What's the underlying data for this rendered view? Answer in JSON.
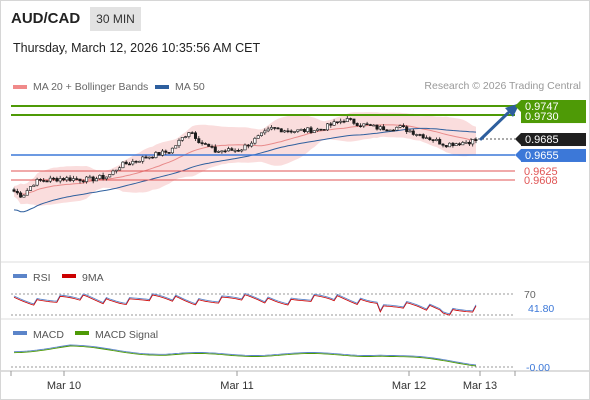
{
  "header": {
    "symbol": "AUD/CAD",
    "timeframe": "30 MIN",
    "datetime": "Thursday, March 12, 2026 10:35:56 AM CET"
  },
  "legend": {
    "bb_label": "MA 20 + Bollinger Bands",
    "ma50_label": "MA 50",
    "credit": "Research © 2026 Trading Central"
  },
  "colors": {
    "green": "#4e9a06",
    "blue": "#3c78d8",
    "red": "#e05555",
    "band": "#f8d2d2",
    "ma50": "#2e5f9e",
    "candle": "#1b1b1b",
    "price_tag": "#1f1f1f"
  },
  "levels": {
    "resistances": [
      "0.9747",
      "0.9730"
    ],
    "last_price": "0.9685",
    "pivot": "0.9655",
    "supports": [
      "0.9625",
      "0.9608"
    ]
  },
  "rsi": {
    "label": "RSI",
    "ma_label": "9MA",
    "level_70": "70",
    "value": "41.80"
  },
  "macd": {
    "label": "MACD",
    "signal_label": "MACD Signal",
    "value": "-0.00"
  },
  "xaxis": {
    "labels": [
      "Mar 10",
      "Mar 11",
      "Mar 12",
      "Mar 13"
    ]
  },
  "chart_data": {
    "type": "candlestick",
    "x": [
      "Mar 10",
      "Mar 11",
      "Mar 12",
      "Mar 13"
    ],
    "price_range": [
      0.9555,
      0.9755
    ],
    "start_close": 0.9588,
    "trend": "rising then consolidating near 0.970",
    "series_names": [
      "MA 20 + Bollinger Bands",
      "MA 50"
    ],
    "levels": [
      0.9747,
      0.973,
      0.9685,
      0.9655,
      0.9625,
      0.9608
    ],
    "arrow": "up"
  }
}
